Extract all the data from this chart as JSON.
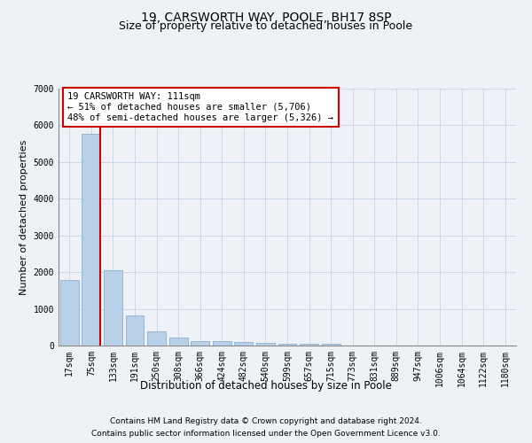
{
  "title": "19, CARSWORTH WAY, POOLE, BH17 8SP",
  "subtitle": "Size of property relative to detached houses in Poole",
  "xlabel": "Distribution of detached houses by size in Poole",
  "ylabel": "Number of detached properties",
  "footnote1": "Contains HM Land Registry data © Crown copyright and database right 2024.",
  "footnote2": "Contains public sector information licensed under the Open Government Licence v3.0.",
  "bar_labels": [
    "17sqm",
    "75sqm",
    "133sqm",
    "191sqm",
    "250sqm",
    "308sqm",
    "366sqm",
    "424sqm",
    "482sqm",
    "540sqm",
    "599sqm",
    "657sqm",
    "715sqm",
    "773sqm",
    "831sqm",
    "889sqm",
    "947sqm",
    "1006sqm",
    "1064sqm",
    "1122sqm",
    "1180sqm"
  ],
  "bar_values": [
    1780,
    5780,
    2060,
    830,
    380,
    220,
    130,
    115,
    90,
    65,
    50,
    45,
    40,
    0,
    0,
    0,
    0,
    0,
    0,
    0,
    0
  ],
  "bar_color": "#b8d0e8",
  "bar_edge_color": "#8ab0cc",
  "grid_color": "#c8d8e8",
  "annotation_text": "19 CARSWORTH WAY: 111sqm\n← 51% of detached houses are smaller (5,706)\n48% of semi-detached houses are larger (5,326) →",
  "annotation_box_color": "#ffffff",
  "annotation_border_color": "#cc0000",
  "red_line_color": "#cc0000",
  "ylim": [
    0,
    7000
  ],
  "yticks": [
    0,
    1000,
    2000,
    3000,
    4000,
    5000,
    6000,
    7000
  ],
  "background_color": "#eef2f7",
  "plot_bg_color": "#eef2f7",
  "title_fontsize": 10,
  "subtitle_fontsize": 9,
  "xlabel_fontsize": 8.5,
  "ylabel_fontsize": 8,
  "tick_fontsize": 7,
  "annot_fontsize": 7.5,
  "footnote_fontsize": 6.5
}
